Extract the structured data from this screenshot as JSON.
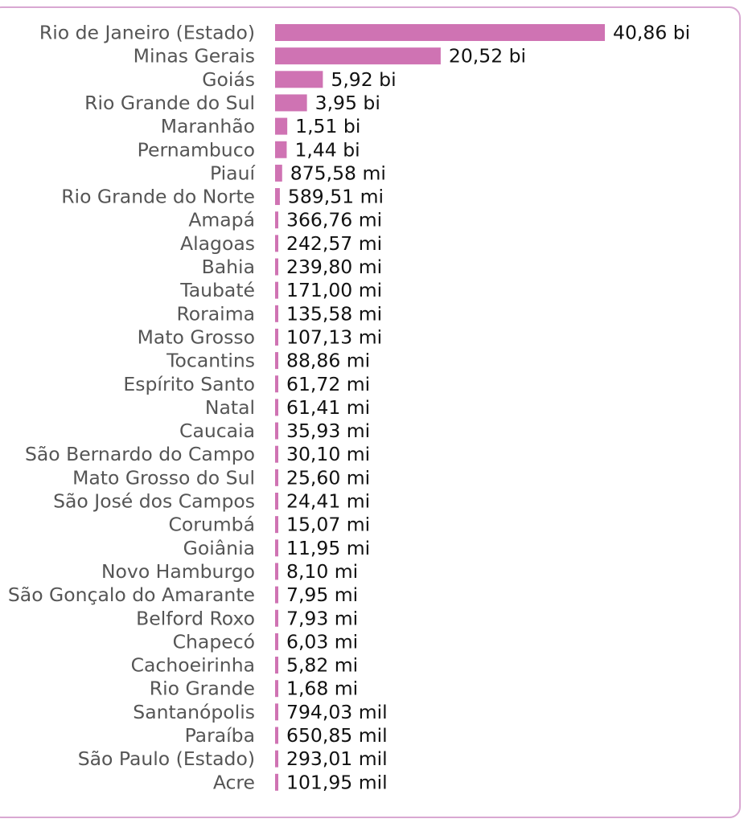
{
  "chart_data": {
    "type": "bar",
    "orientation": "horizontal",
    "title": "",
    "xlabel": "",
    "ylabel": "",
    "bar_color": "#cf73b3",
    "frame_color": "#d9a8d2",
    "grid": false,
    "categories": [
      "Rio de Janeiro (Estado)",
      "Minas Gerais",
      "Goiás",
      "Rio Grande do Sul",
      "Maranhão",
      "Pernambuco",
      "Piauí",
      "Rio Grande do Norte",
      "Amapá",
      "Alagoas",
      "Bahia",
      "Taubaté",
      "Roraima",
      "Mato Grosso",
      "Tocantins",
      "Espírito Santo",
      "Natal",
      "Caucaia",
      "São Bernardo do Campo",
      "Mato Grosso do Sul",
      "São José dos Campos",
      "Corumbá",
      "Goiânia",
      "Novo Hamburgo",
      "São Gonçalo do Amarante",
      "Belford Roxo",
      "Chapecó",
      "Cachoeirinha",
      "Rio Grande",
      "Santanópolis",
      "Paraíba",
      "São Paulo (Estado)",
      "Acre"
    ],
    "values": [
      40860000000,
      20520000000,
      5920000000,
      3950000000,
      1510000000,
      1440000000,
      875580000,
      589510000,
      366760000,
      242570000,
      239800000,
      171000000,
      135580000,
      107130000,
      88860000,
      61720000,
      61410000,
      35930000,
      30100000,
      25600000,
      24410000,
      15070000,
      11950000,
      8100000,
      7950000,
      7930000,
      6030000,
      5820000,
      1680000,
      794030,
      650850,
      293010,
      101950
    ],
    "value_labels": [
      "40,86 bi",
      "20,52 bi",
      "5,92 bi",
      "3,95 bi",
      "1,51 bi",
      "1,44 bi",
      "875,58 mi",
      "589,51 mi",
      "366,76 mi",
      "242,57 mi",
      "239,80 mi",
      "171,00 mi",
      "135,58 mi",
      "107,13 mi",
      "88,86 mi",
      "61,72 mi",
      "61,41 mi",
      "35,93 mi",
      "30,10 mi",
      "25,60 mi",
      "24,41 mi",
      "15,07 mi",
      "11,95 mi",
      "8,10 mi",
      "7,95 mi",
      "7,93 mi",
      "6,03 mi",
      "5,82 mi",
      "1,68 mi",
      "794,03 mil",
      "650,85 mil",
      "293,01 mil",
      "101,95 mil"
    ]
  }
}
